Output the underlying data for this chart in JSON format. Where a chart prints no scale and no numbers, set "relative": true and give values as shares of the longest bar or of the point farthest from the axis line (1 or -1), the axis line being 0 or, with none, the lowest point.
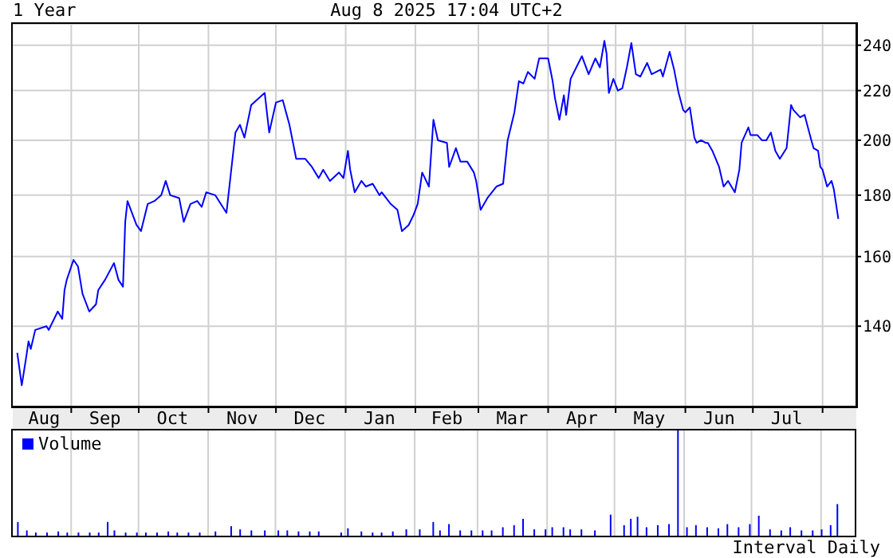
{
  "chart_data": [
    {
      "type": "line",
      "title": "1 Year",
      "annotations": [
        "Aug 8 2025 17:04 UTC+2"
      ],
      "x": [
        "2024-08-08",
        "2024-08-10",
        "2024-08-12",
        "2024-08-13",
        "2024-08-14",
        "2024-08-16",
        "2024-08-21",
        "2024-08-22",
        "2024-08-26",
        "2024-08-28",
        "2024-08-29",
        "2024-08-30",
        "2024-09-02",
        "2024-09-04",
        "2024-09-06",
        "2024-09-09",
        "2024-09-12",
        "2024-09-13",
        "2024-09-16",
        "2024-09-20",
        "2024-09-22",
        "2024-09-24",
        "2024-09-25",
        "2024-09-26",
        "2024-09-30",
        "2024-10-02",
        "2024-10-05",
        "2024-10-08",
        "2024-10-11",
        "2024-10-13",
        "2024-10-15",
        "2024-10-19",
        "2024-10-21",
        "2024-10-24",
        "2024-10-27",
        "2024-10-29",
        "2024-10-31",
        "2024-11-04",
        "2024-11-09",
        "2024-11-11",
        "2024-11-13",
        "2024-11-15",
        "2024-11-17",
        "2024-11-20",
        "2024-11-26",
        "2024-11-28",
        "2024-12-01",
        "2024-12-04",
        "2024-12-07",
        "2024-12-10",
        "2024-12-14",
        "2024-12-17",
        "2024-12-20",
        "2024-12-22",
        "2024-12-25",
        "2024-12-29",
        "2024-12-31",
        "2025-01-02",
        "2025-01-03",
        "2025-01-05",
        "2025-01-08",
        "2025-01-10",
        "2025-01-13",
        "2025-01-16",
        "2025-01-17",
        "2025-01-21",
        "2025-01-24",
        "2025-01-26",
        "2025-01-29",
        "2025-01-31",
        "2025-02-02",
        "2025-02-04",
        "2025-02-07",
        "2025-02-09",
        "2025-02-11",
        "2025-02-15",
        "2025-02-16",
        "2025-02-19",
        "2025-02-21",
        "2025-02-24",
        "2025-02-27",
        "2025-02-28",
        "2025-03-02",
        "2025-03-05",
        "2025-03-09",
        "2025-03-12",
        "2025-03-14",
        "2025-03-17",
        "2025-03-19",
        "2025-03-21",
        "2025-03-23",
        "2025-03-26",
        "2025-03-28",
        "2025-04-01",
        "2025-04-03",
        "2025-04-04",
        "2025-04-06",
        "2025-04-08",
        "2025-04-09",
        "2025-04-11",
        "2025-04-16",
        "2025-04-19",
        "2025-04-22",
        "2025-04-24",
        "2025-04-26",
        "2025-04-27",
        "2025-04-28",
        "2025-04-30",
        "2025-05-02",
        "2025-05-04",
        "2025-05-06",
        "2025-05-08",
        "2025-05-10",
        "2025-05-12",
        "2025-05-15",
        "2025-05-17",
        "2025-05-21",
        "2025-05-22",
        "2025-05-25",
        "2025-05-27",
        "2025-05-29",
        "2025-05-31",
        "2025-06-01",
        "2025-06-03",
        "2025-06-05",
        "2025-06-06",
        "2025-06-08",
        "2025-06-10",
        "2025-06-11",
        "2025-06-13",
        "2025-06-16",
        "2025-06-18",
        "2025-06-20",
        "2025-06-23",
        "2025-06-25",
        "2025-06-26",
        "2025-06-29",
        "2025-06-30",
        "2025-07-03",
        "2025-07-05",
        "2025-07-07",
        "2025-07-09",
        "2025-07-11",
        "2025-07-13",
        "2025-07-16",
        "2025-07-18",
        "2025-07-19",
        "2025-07-22",
        "2025-07-24",
        "2025-07-27",
        "2025-07-28",
        "2025-07-30",
        "2025-07-31",
        "2025-08-01",
        "2025-08-03",
        "2025-08-05",
        "2025-08-06",
        "2025-08-08"
      ],
      "series": [
        {
          "color": "#0000ff",
          "values": [
            133,
            125,
            132,
            136,
            134,
            139,
            140,
            139,
            144,
            142,
            150,
            153,
            159,
            157,
            149,
            144,
            146,
            150,
            153,
            158,
            153,
            151,
            171,
            178,
            170,
            168,
            177,
            178,
            180,
            185,
            180,
            179,
            171,
            177,
            178,
            176,
            181,
            180,
            174,
            188,
            203,
            206,
            201,
            214,
            219,
            203,
            215,
            216,
            206,
            193,
            193,
            190,
            186,
            189,
            185,
            188,
            186,
            196,
            189,
            181,
            185,
            183,
            184,
            180,
            181,
            177,
            175,
            168,
            170,
            173,
            177,
            188,
            183,
            208,
            200,
            199,
            190,
            197,
            192,
            192,
            188,
            185,
            175,
            179,
            183,
            184,
            200,
            211,
            224,
            223,
            228,
            225,
            234,
            234,
            224,
            217,
            208,
            218,
            210,
            225,
            235,
            227,
            234,
            230,
            242,
            236,
            219,
            225,
            220,
            221,
            230,
            241,
            227,
            226,
            232,
            227,
            229,
            226,
            237,
            229,
            219,
            212,
            211,
            213,
            201,
            199,
            200,
            199,
            199,
            196,
            190,
            183,
            185,
            181,
            189,
            199,
            205,
            202,
            202,
            200,
            200,
            203,
            196,
            193,
            197,
            214,
            212,
            209,
            210,
            200,
            197,
            196,
            190,
            189,
            183,
            185,
            182,
            172
          ]
        }
      ],
      "xlim": [
        "2024-08-06",
        "2025-08-16"
      ],
      "xticks": [
        {
          "value": "2024-08-20",
          "label": "Aug"
        },
        {
          "value": "2024-09-01",
          "label": null
        },
        {
          "value": "2024-09-16",
          "label": "Sep"
        },
        {
          "value": "2024-10-01",
          "label": null
        },
        {
          "value": "2024-10-16",
          "label": "Oct"
        },
        {
          "value": "2024-11-01",
          "label": null
        },
        {
          "value": "2024-11-16",
          "label": "Nov"
        },
        {
          "value": "2024-12-01",
          "label": null
        },
        {
          "value": "2024-12-16",
          "label": "Dec"
        },
        {
          "value": "2025-01-01",
          "label": null
        },
        {
          "value": "2025-01-16",
          "label": "Jan"
        },
        {
          "value": "2025-02-01",
          "label": null
        },
        {
          "value": "2025-02-15",
          "label": "Feb"
        },
        {
          "value": "2025-03-01",
          "label": null
        },
        {
          "value": "2025-03-16",
          "label": "Mar"
        },
        {
          "value": "2025-04-01",
          "label": null
        },
        {
          "value": "2025-04-16",
          "label": "Apr"
        },
        {
          "value": "2025-05-01",
          "label": null
        },
        {
          "value": "2025-05-16",
          "label": "May"
        },
        {
          "value": "2025-06-01",
          "label": null
        },
        {
          "value": "2025-06-16",
          "label": "Jun"
        },
        {
          "value": "2025-07-01",
          "label": null
        },
        {
          "value": "2025-07-16",
          "label": "Jul"
        },
        {
          "value": "2025-08-01",
          "label": null
        }
      ],
      "ylim": [
        120,
        250
      ],
      "yticks": [
        140,
        160,
        180,
        200,
        220,
        240
      ],
      "log": "y",
      "grid": true
    },
    {
      "type": "bar",
      "relative": true,
      "legend": "top left",
      "tick_labels": false,
      "grid": "x",
      "annotations": [
        "Interval Daily"
      ],
      "x": [
        "2024-08-08",
        "2024-08-12",
        "2024-08-16",
        "2024-08-21",
        "2024-08-26",
        "2024-08-30",
        "2024-09-04",
        "2024-09-09",
        "2024-09-13",
        "2024-09-17",
        "2024-09-20",
        "2024-09-25",
        "2024-09-30",
        "2024-10-04",
        "2024-10-09",
        "2024-10-14",
        "2024-10-18",
        "2024-10-23",
        "2024-10-28",
        "2024-11-04",
        "2024-11-11",
        "2024-11-15",
        "2024-11-20",
        "2024-11-26",
        "2024-12-02",
        "2024-12-06",
        "2024-12-11",
        "2024-12-16",
        "2024-12-20",
        "2024-12-30",
        "2025-01-02",
        "2025-01-08",
        "2025-01-13",
        "2025-01-17",
        "2025-01-22",
        "2025-01-28",
        "2025-02-03",
        "2025-02-09",
        "2025-02-12",
        "2025-02-16",
        "2025-02-21",
        "2025-02-26",
        "2025-03-03",
        "2025-03-07",
        "2025-03-12",
        "2025-03-17",
        "2025-03-21",
        "2025-03-26",
        "2025-03-31",
        "2025-04-03",
        "2025-04-08",
        "2025-04-11",
        "2025-04-16",
        "2025-04-22",
        "2025-04-29",
        "2025-05-05",
        "2025-05-08",
        "2025-05-11",
        "2025-05-15",
        "2025-05-20",
        "2025-05-25",
        "2025-05-29",
        "2025-06-02",
        "2025-06-06",
        "2025-06-11",
        "2025-06-16",
        "2025-06-20",
        "2025-06-25",
        "2025-06-30",
        "2025-07-04",
        "2025-07-09",
        "2025-07-14",
        "2025-07-18",
        "2025-07-23",
        "2025-07-28",
        "2025-08-01",
        "2025-08-05",
        "2025-08-08"
      ],
      "series": [
        {
          "name": "Volume",
          "color": "#0000ff",
          "values": [
            0.13,
            0.05,
            0.03,
            0.03,
            0.04,
            0.03,
            0.03,
            0.03,
            0.03,
            0.13,
            0.05,
            0.03,
            0.03,
            0.03,
            0.03,
            0.04,
            0.03,
            0.03,
            0.03,
            0.04,
            0.09,
            0.06,
            0.05,
            0.05,
            0.05,
            0.05,
            0.04,
            0.04,
            0.04,
            0.03,
            0.07,
            0.04,
            0.03,
            0.03,
            0.04,
            0.06,
            0.06,
            0.13,
            0.05,
            0.11,
            0.05,
            0.05,
            0.05,
            0.05,
            0.08,
            0.1,
            0.16,
            0.06,
            0.06,
            0.08,
            0.08,
            0.06,
            0.06,
            0.05,
            0.2,
            0.1,
            0.16,
            0.18,
            0.08,
            0.1,
            0.11,
            1,
            0.08,
            0.1,
            0.08,
            0.07,
            0.11,
            0.08,
            0.11,
            0.19,
            0.06,
            0.05,
            0.08,
            0.05,
            0.05,
            0.06,
            0.1,
            0.3
          ]
        }
      ],
      "xlim": [
        "2024-08-06",
        "2025-08-16"
      ],
      "xticks": [
        {
          "value": "2024-09-01",
          "label": null
        },
        {
          "value": "2024-10-01",
          "label": null
        },
        {
          "value": "2024-11-01",
          "label": null
        },
        {
          "value": "2024-12-01",
          "label": null
        },
        {
          "value": "2025-01-01",
          "label": null
        },
        {
          "value": "2025-02-01",
          "label": null
        },
        {
          "value": "2025-03-01",
          "label": null
        },
        {
          "value": "2025-04-01",
          "label": null
        },
        {
          "value": "2025-05-01",
          "label": null
        },
        {
          "value": "2025-06-01",
          "label": null
        },
        {
          "value": "2025-07-01",
          "label": null
        },
        {
          "value": "2025-08-01",
          "label": null
        }
      ]
    }
  ]
}
